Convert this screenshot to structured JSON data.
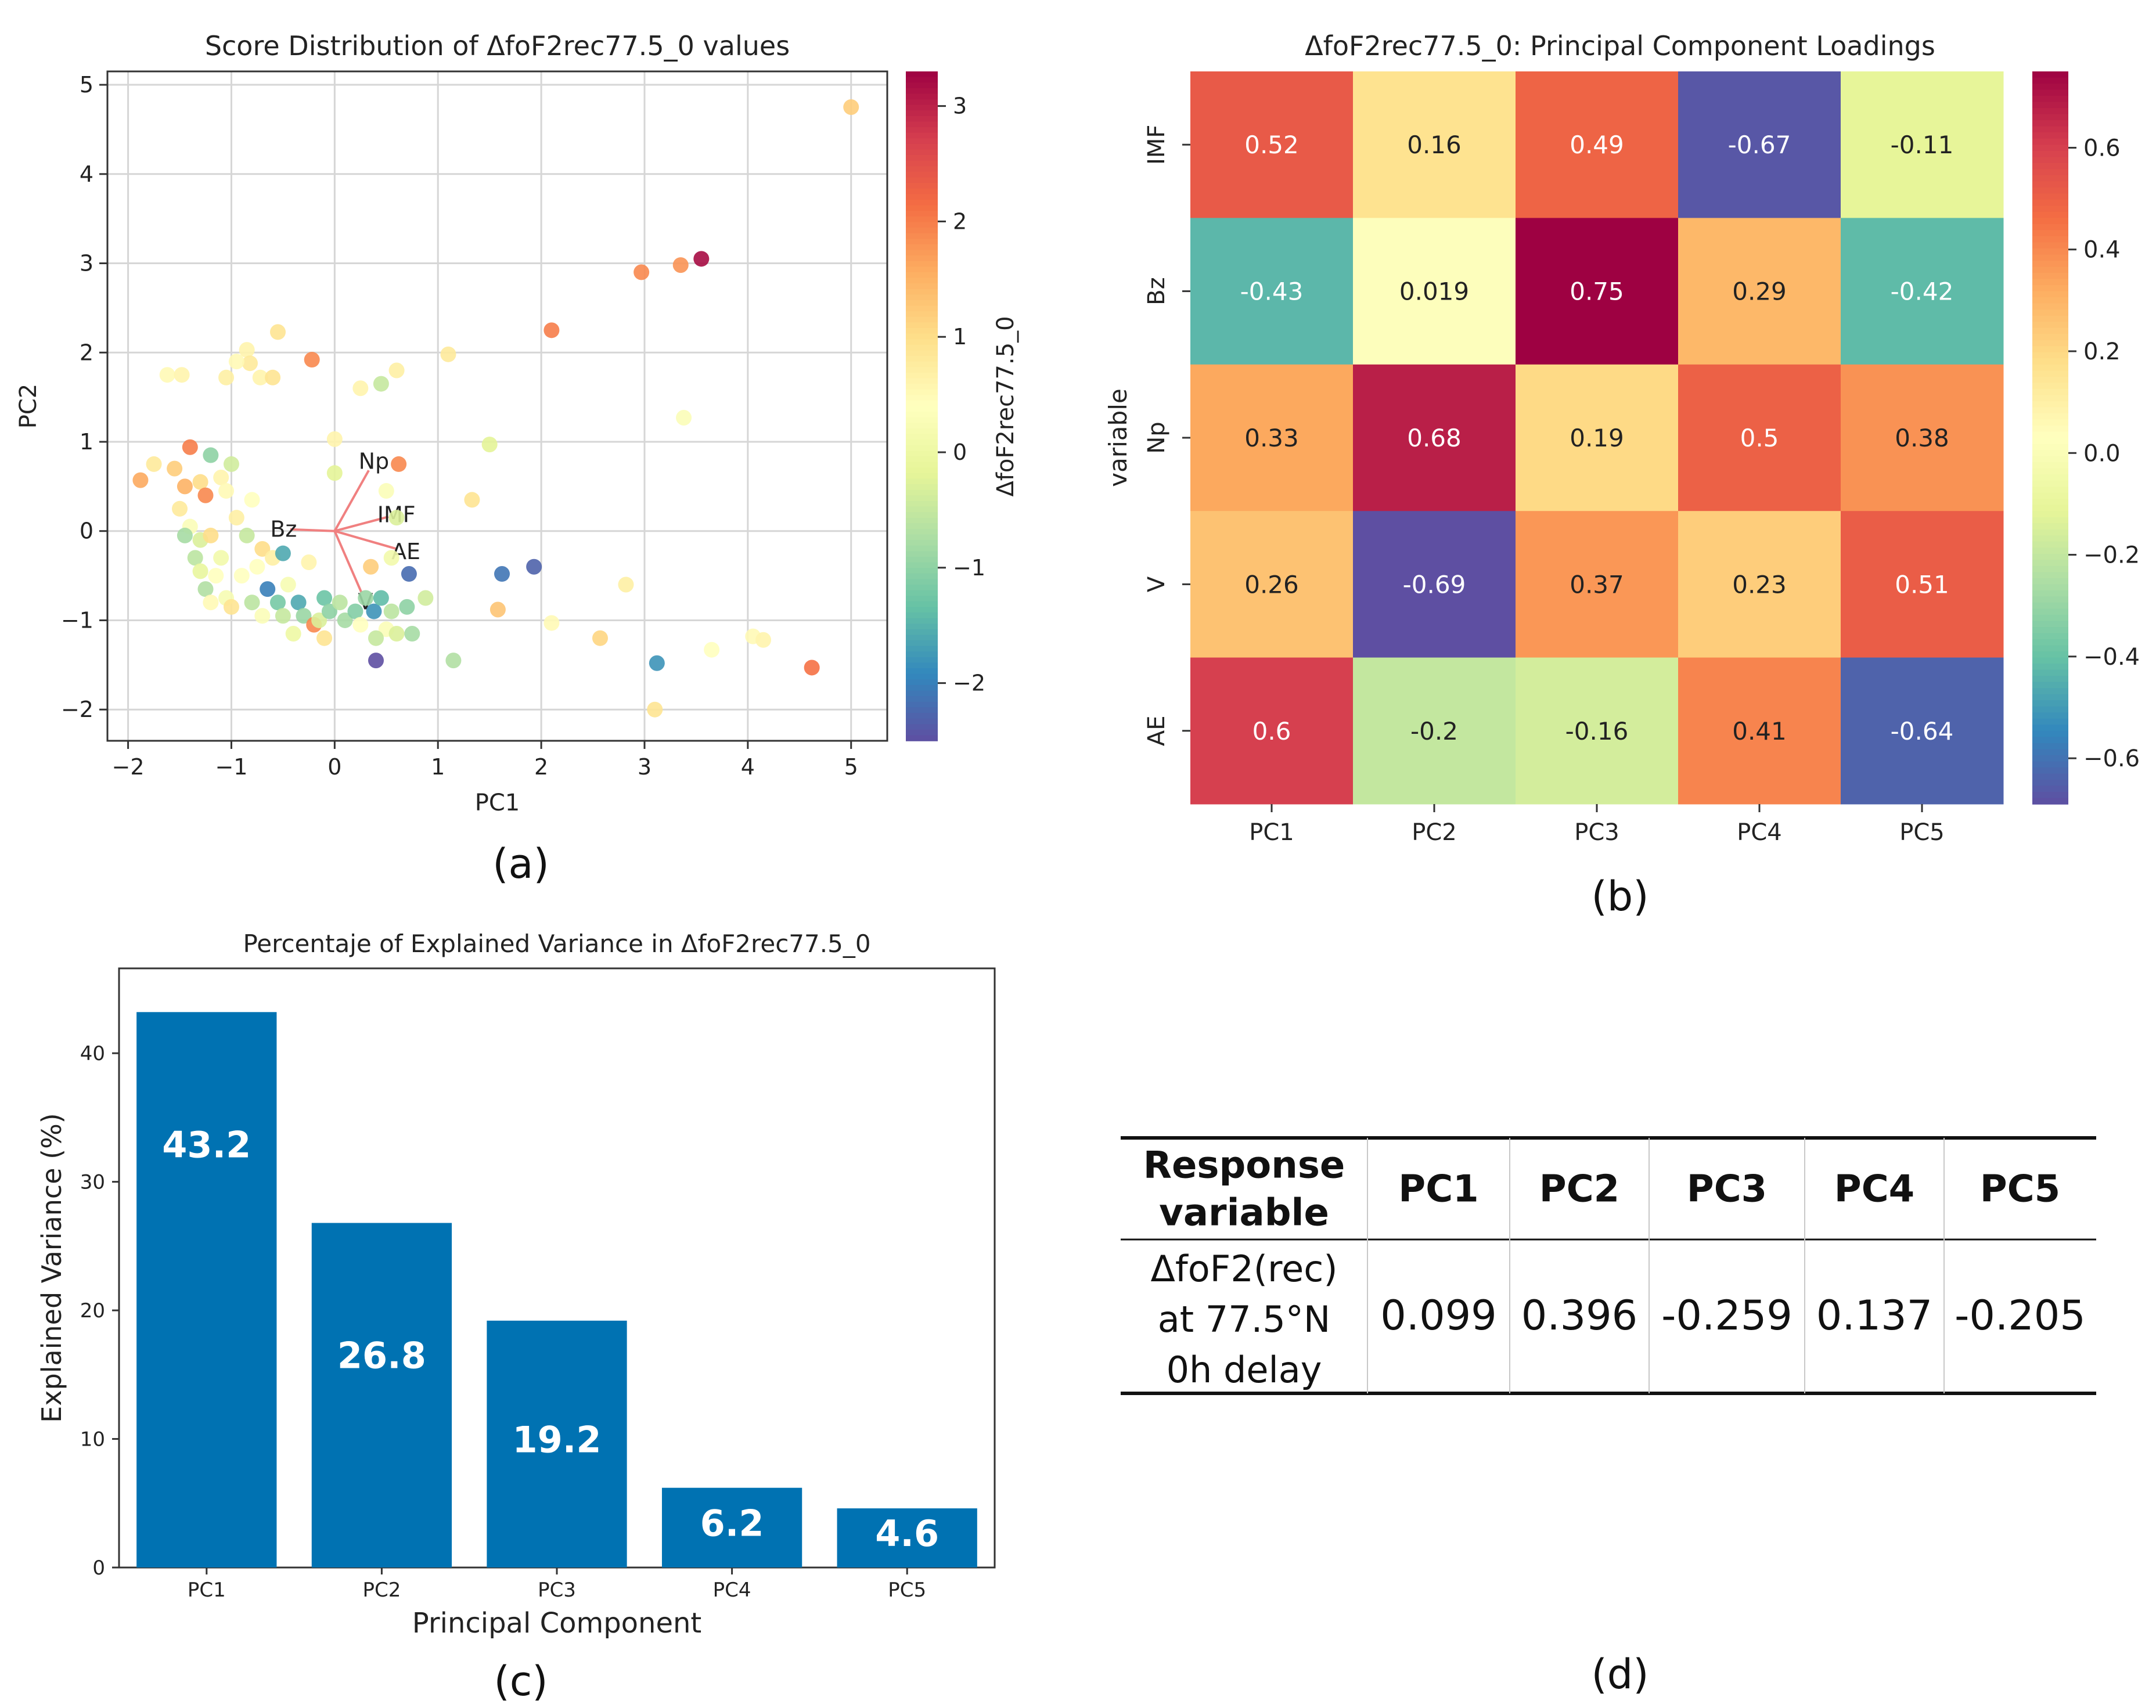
{
  "panel_labels": {
    "a": "(a)",
    "b": "(b)",
    "c": "(c)",
    "d": "(d)"
  },
  "chart_data": [
    {
      "id": "a",
      "type": "scatter",
      "title": "Score Distribution of ΔfoF2rec77.5_0 values",
      "xlabel": "PC1",
      "ylabel": "PC2",
      "xlim": [
        -2.2,
        5.35
      ],
      "ylim": [
        -2.35,
        5.15
      ],
      "xticks": [
        -2,
        -1,
        0,
        1,
        2,
        3,
        4,
        5
      ],
      "yticks": [
        -2,
        -1,
        0,
        1,
        2,
        3,
        4,
        5
      ],
      "grid": true,
      "colorbar": {
        "label": "ΔfoF2rec77.5_0",
        "range": [
          -2.5,
          3.3
        ],
        "ticks": [
          -2,
          -1,
          0,
          1,
          2,
          3
        ]
      },
      "colors": {
        "cmap": [
          "#5e4fa2",
          "#3288bd",
          "#66c2a5",
          "#abdda4",
          "#e6f598",
          "#ffffbf",
          "#fee08b",
          "#fdae61",
          "#f46d43",
          "#d53e4f",
          "#9e0142"
        ],
        "loading_arrow": "#f08080"
      },
      "loadings": [
        {
          "name": "Np",
          "dx": 0.33,
          "dy": 0.68
        },
        {
          "name": "IMF",
          "dx": 0.52,
          "dy": 0.16
        },
        {
          "name": "Bz",
          "dx": -0.43,
          "dy": 0.019
        },
        {
          "name": "AE",
          "dx": 0.6,
          "dy": -0.2
        },
        {
          "name": "V",
          "dx": 0.26,
          "dy": -0.69
        }
      ],
      "points": [
        [
          5.0,
          4.75,
          1.2
        ],
        [
          3.55,
          3.05,
          3.2
        ],
        [
          3.35,
          2.98,
          1.8
        ],
        [
          2.97,
          2.9,
          1.9
        ],
        [
          2.1,
          2.25,
          2.0
        ],
        [
          3.38,
          1.27,
          0.3
        ],
        [
          1.1,
          1.98,
          0.8
        ],
        [
          0.6,
          1.8,
          0.7
        ],
        [
          0.45,
          1.65,
          -0.5
        ],
        [
          0.25,
          1.6,
          0.6
        ],
        [
          -0.55,
          2.23,
          0.9
        ],
        [
          -0.85,
          2.03,
          0.6
        ],
        [
          -0.82,
          1.88,
          0.8
        ],
        [
          -0.95,
          1.9,
          0.5
        ],
        [
          -1.05,
          1.72,
          0.7
        ],
        [
          -0.72,
          1.72,
          0.6
        ],
        [
          -0.6,
          1.72,
          0.9
        ],
        [
          -0.22,
          1.92,
          1.9
        ],
        [
          -1.62,
          1.75,
          0.5
        ],
        [
          -1.48,
          1.75,
          0.6
        ],
        [
          -1.88,
          0.57,
          1.6
        ],
        [
          -1.75,
          0.75,
          0.8
        ],
        [
          -1.55,
          0.7,
          1.2
        ],
        [
          -1.4,
          0.94,
          2.0
        ],
        [
          -1.2,
          0.85,
          -1.0
        ],
        [
          -1.1,
          0.6,
          0.6
        ],
        [
          -1.0,
          0.75,
          -0.4
        ],
        [
          -1.3,
          0.55,
          1.0
        ],
        [
          -1.25,
          0.4,
          1.9
        ],
        [
          -1.05,
          0.45,
          0.5
        ],
        [
          -0.8,
          0.35,
          0.4
        ],
        [
          -0.95,
          0.15,
          0.7
        ],
        [
          -1.45,
          0.5,
          1.5
        ],
        [
          -1.5,
          0.25,
          0.8
        ],
        [
          -1.4,
          0.05,
          0.3
        ],
        [
          -1.45,
          -0.05,
          -0.8
        ],
        [
          -1.3,
          -0.1,
          -0.3
        ],
        [
          -1.2,
          -0.05,
          1.0
        ],
        [
          -1.1,
          -0.3,
          0.1
        ],
        [
          -1.35,
          -0.3,
          -0.6
        ],
        [
          -1.15,
          -0.5,
          0.4
        ],
        [
          -1.25,
          -0.65,
          -0.7
        ],
        [
          -1.05,
          -0.75,
          0.2
        ],
        [
          -1.2,
          -0.8,
          0.5
        ],
        [
          -1.0,
          -0.85,
          0.9
        ],
        [
          -0.85,
          -0.05,
          -0.5
        ],
        [
          -0.7,
          -0.2,
          1.0
        ],
        [
          -0.6,
          -0.3,
          0.7
        ],
        [
          -0.75,
          -0.4,
          0.4
        ],
        [
          -0.5,
          -0.25,
          -1.6
        ],
        [
          -0.65,
          -0.65,
          -2.0
        ],
        [
          -0.55,
          -0.8,
          -1.2
        ],
        [
          -0.5,
          -0.95,
          -0.5
        ],
        [
          -0.7,
          -0.95,
          0.3
        ],
        [
          -0.8,
          -0.8,
          -0.6
        ],
        [
          -0.35,
          -0.8,
          -1.6
        ],
        [
          -0.3,
          -0.95,
          -0.9
        ],
        [
          -0.4,
          -1.15,
          0.0
        ],
        [
          -0.2,
          -1.05,
          1.9
        ],
        [
          -0.1,
          -1.2,
          0.9
        ],
        [
          -0.15,
          -1.0,
          -0.3
        ],
        [
          -0.1,
          -0.75,
          -1.3
        ],
        [
          -0.05,
          -0.9,
          -1.0
        ],
        [
          0.05,
          -0.8,
          -0.6
        ],
        [
          0.1,
          -1.0,
          -0.8
        ],
        [
          0.2,
          -0.9,
          -1.1
        ],
        [
          0.3,
          -0.75,
          -0.9
        ],
        [
          0.38,
          -0.9,
          -1.8
        ],
        [
          0.45,
          -0.75,
          -1.4
        ],
        [
          0.55,
          -0.9,
          -0.6
        ],
        [
          0.5,
          -1.1,
          0.3
        ],
        [
          0.7,
          -0.85,
          -1.0
        ],
        [
          0.75,
          -1.15,
          -0.8
        ],
        [
          0.88,
          -0.75,
          -0.4
        ],
        [
          0.6,
          -1.15,
          -0.3
        ],
        [
          0.4,
          -1.2,
          -0.5
        ],
        [
          0.25,
          -1.05,
          0.4
        ],
        [
          0.4,
          -1.45,
          -2.5
        ],
        [
          0.72,
          -0.48,
          -2.2
        ],
        [
          0.55,
          -0.3,
          0.1
        ],
        [
          0.35,
          -0.4,
          1.2
        ],
        [
          0.6,
          0.15,
          -0.3
        ],
        [
          0.5,
          0.45,
          0.3
        ],
        [
          0.62,
          0.75,
          1.9
        ],
        [
          0.0,
          0.65,
          -0.2
        ],
        [
          0.0,
          1.03,
          0.6
        ],
        [
          1.33,
          0.35,
          0.9
        ],
        [
          1.5,
          0.97,
          -0.2
        ],
        [
          1.62,
          -0.48,
          -2.1
        ],
        [
          1.93,
          -0.4,
          -2.3
        ],
        [
          1.58,
          -0.88,
          1.3
        ],
        [
          2.1,
          -1.03,
          0.5
        ],
        [
          2.57,
          -1.2,
          1.1
        ],
        [
          2.82,
          -0.6,
          0.7
        ],
        [
          3.1,
          -2.0,
          0.9
        ],
        [
          3.12,
          -1.48,
          -1.8
        ],
        [
          3.65,
          -1.33,
          0.4
        ],
        [
          4.05,
          -1.18,
          0.5
        ],
        [
          4.15,
          -1.22,
          0.6
        ],
        [
          4.62,
          -1.53,
          2.1
        ],
        [
          1.15,
          -1.45,
          -0.7
        ],
        [
          -0.25,
          -0.35,
          0.6
        ],
        [
          -0.9,
          -0.5,
          0.4
        ],
        [
          -1.3,
          -0.45,
          -0.1
        ],
        [
          -0.45,
          -0.6,
          0.2
        ]
      ]
    },
    {
      "id": "b",
      "type": "heatmap",
      "title": "ΔfoF2rec77.5_0: Principal Component Loadings",
      "xlabel": "",
      "ylabel": "variable",
      "columns": [
        "PC1",
        "PC2",
        "PC3",
        "PC4",
        "PC5"
      ],
      "rows": [
        "IMF",
        "Bz",
        "Np",
        "V",
        "AE"
      ],
      "values": [
        [
          0.52,
          0.16,
          0.49,
          -0.67,
          -0.11
        ],
        [
          -0.43,
          0.019,
          0.75,
          0.29,
          -0.42
        ],
        [
          0.33,
          0.68,
          0.19,
          0.5,
          0.38
        ],
        [
          0.26,
          -0.69,
          0.37,
          0.23,
          0.51
        ],
        [
          0.6,
          -0.2,
          -0.16,
          0.41,
          -0.64
        ]
      ],
      "labels": [
        [
          "0.52",
          "0.16",
          "0.49",
          "-0.67",
          "-0.11"
        ],
        [
          "-0.43",
          "0.019",
          "0.75",
          "0.29",
          "-0.42"
        ],
        [
          "0.33",
          "0.68",
          "0.19",
          "0.5",
          "0.38"
        ],
        [
          "0.26",
          "-0.69",
          "0.37",
          "0.23",
          "0.51"
        ],
        [
          "0.6",
          "-0.2",
          "-0.16",
          "0.41",
          "-0.64"
        ]
      ],
      "colorbar": {
        "range": [
          -0.69,
          0.75
        ],
        "ticks": [
          -0.6,
          -0.4,
          -0.2,
          0.0,
          0.2,
          0.4,
          0.6
        ],
        "tick_labels": [
          "−0.6",
          "−0.4",
          "−0.2",
          "0.0",
          "0.2",
          "0.4",
          "0.6"
        ]
      }
    },
    {
      "id": "c",
      "type": "bar",
      "title": "Percentaje of Explained Variance in ΔfoF2rec77.5_0",
      "xlabel": "Principal Component",
      "ylabel": "Explained Variance (%)",
      "categories": [
        "PC1",
        "PC2",
        "PC3",
        "PC4",
        "PC5"
      ],
      "values": [
        43.2,
        26.8,
        19.2,
        6.2,
        4.6
      ],
      "value_labels": [
        "43.2",
        "26.8",
        "19.2",
        "6.2",
        "4.6"
      ],
      "ylim": [
        0,
        46.6
      ],
      "yticks": [
        0,
        10,
        20,
        30,
        40
      ],
      "colors": {
        "bar": "#0072b2",
        "label": "#ffffff"
      }
    },
    {
      "id": "d",
      "type": "table",
      "header": [
        "Response variable",
        "PC1",
        "PC2",
        "PC3",
        "PC4",
        "PC5"
      ],
      "header_lines": [
        [
          "Response",
          "variable"
        ],
        [
          "PC1"
        ],
        [
          "PC2"
        ],
        [
          "PC3"
        ],
        [
          "PC4"
        ],
        [
          "PC5"
        ]
      ],
      "row_label_lines": [
        "ΔfoF2(rec)",
        "at 77.5°N",
        "0h delay"
      ],
      "values": [
        "0.099",
        "0.396",
        "-0.259",
        "0.137",
        "-0.205"
      ]
    }
  ]
}
